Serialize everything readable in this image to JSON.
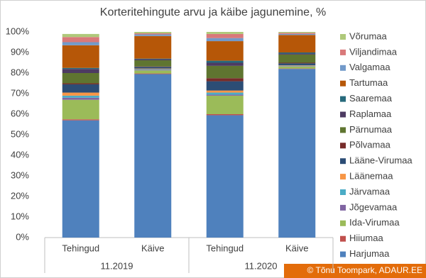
{
  "chart_data": {
    "type": "stacked_bar",
    "title": "Korteritehingute arvu ja käibe jagunemine, %",
    "categories": [
      "Tehingud",
      "Käive",
      "Tehingud",
      "Käive"
    ],
    "group_labels": [
      "11.2019",
      "11.2020"
    ],
    "ylim": [
      0,
      100
    ],
    "yticks": [
      {
        "value": 0,
        "label": "0%"
      },
      {
        "value": 10,
        "label": "10%"
      },
      {
        "value": 20,
        "label": "20%"
      },
      {
        "value": 30,
        "label": "30%"
      },
      {
        "value": 40,
        "label": "40%"
      },
      {
        "value": 50,
        "label": "50%"
      },
      {
        "value": 60,
        "label": "60%"
      },
      {
        "value": 70,
        "label": "70%"
      },
      {
        "value": 80,
        "label": "80%"
      },
      {
        "value": 90,
        "label": "90%"
      },
      {
        "value": 100,
        "label": "100%"
      }
    ],
    "grid": false,
    "legend": "right",
    "series": [
      {
        "name": "Harjumaa",
        "color": "#4f81bd",
        "values": [
          57,
          79.5,
          59.5,
          82
        ]
      },
      {
        "name": "Hiiumaa",
        "color": "#c0504d",
        "values": [
          0.5,
          0.3,
          0.5,
          0.2
        ]
      },
      {
        "name": "Ida-Virumaa",
        "color": "#9bbb59",
        "values": [
          9.5,
          1.5,
          9,
          1
        ]
      },
      {
        "name": "Jõgevamaa",
        "color": "#8064a2",
        "values": [
          1,
          0.3,
          0.5,
          0.2
        ]
      },
      {
        "name": "Järvamaa",
        "color": "#4bacc6",
        "values": [
          1,
          0.3,
          1,
          0.2
        ]
      },
      {
        "name": "Läänemaa",
        "color": "#f79646",
        "values": [
          1.5,
          0.3,
          1,
          0.2
        ]
      },
      {
        "name": "Lääne-Virumaa",
        "color": "#2c4d75",
        "values": [
          4,
          0.8,
          4.5,
          0.9
        ]
      },
      {
        "name": "Põlvamaa",
        "color": "#772c2a",
        "values": [
          0.5,
          0.2,
          1.5,
          0.3
        ]
      },
      {
        "name": "Pärnumaa",
        "color": "#5f7530",
        "values": [
          5,
          3,
          6,
          4
        ]
      },
      {
        "name": "Raplamaa",
        "color": "#4d3b62",
        "values": [
          2,
          0.5,
          1.5,
          0.5
        ]
      },
      {
        "name": "Saaremaa",
        "color": "#276a7c",
        "values": [
          0.5,
          0.3,
          1,
          0.5
        ]
      },
      {
        "name": "Tartumaa",
        "color": "#b65708",
        "values": [
          11,
          11,
          9.5,
          8.5
        ]
      },
      {
        "name": "Valgamaa",
        "color": "#729aca",
        "values": [
          1.5,
          0.8,
          1.5,
          0.5
        ]
      },
      {
        "name": "Viljandimaa",
        "color": "#d9797a",
        "values": [
          2.5,
          0.5,
          2,
          0.5
        ]
      },
      {
        "name": "Võrumaa",
        "color": "#afc97a",
        "values": [
          1.5,
          0.7,
          1,
          0.5
        ]
      }
    ],
    "annotation": "© Tõnu Toompark, ADAUR.EE"
  }
}
